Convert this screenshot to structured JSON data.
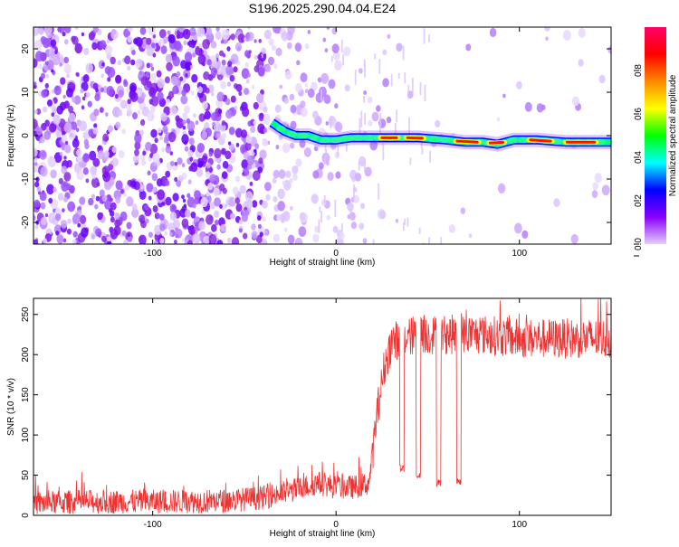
{
  "title": "S196.2025.290.04.04.E24",
  "chart_data": [
    {
      "type": "heatmap",
      "xlabel": "Height of straight line (km)",
      "ylabel": "Frequency (Hz)",
      "xlim": [
        -165,
        150
      ],
      "ylim": [
        -25,
        25
      ],
      "x_ticks": [
        -100,
        0,
        100
      ],
      "x_tick_labels": [
        "-100",
        "0",
        "100"
      ],
      "y_ticks": [
        -20,
        -10,
        0,
        10,
        20
      ],
      "y_tick_labels": [
        "-20",
        "-10",
        "0",
        "10",
        "20"
      ],
      "colorbar": {
        "label": "Normalized spectral amplitude",
        "range": [
          0,
          1
        ],
        "ticks": [
          0.0,
          0.2,
          0.4,
          0.6,
          0.8
        ],
        "tick_labels": [
          "0.0",
          "0.2",
          "0.4",
          "0.6",
          "0.8"
        ],
        "colors": [
          "#e6ccff",
          "#8800ff",
          "#0000ff",
          "#00ffff",
          "#00ff00",
          "#ffff00",
          "#ff8800",
          "#ff0000",
          "#ff0066"
        ]
      },
      "ridge": {
        "name": "frequency ridge",
        "x": [
          -35,
          -28,
          -22,
          -15,
          -8,
          0,
          8,
          18,
          30,
          45,
          60,
          70,
          80,
          88,
          97,
          110,
          125,
          150
        ],
        "y": [
          3,
          1,
          0,
          0,
          -1,
          -1,
          -0.5,
          -0.5,
          -0.5,
          -0.5,
          -1,
          -1.5,
          -1.5,
          -2,
          -1,
          -1,
          -1.5,
          -1.5
        ],
        "peak_segments": [
          [
            24,
            34
          ],
          [
            38,
            48
          ],
          [
            65,
            78
          ],
          [
            83,
            92
          ],
          [
            105,
            118
          ],
          [
            125,
            142
          ]
        ]
      }
    },
    {
      "type": "line",
      "xlabel": "Height of straight line (km)",
      "ylabel": "SNR (10 * v/v)",
      "xlim": [
        -165,
        150
      ],
      "ylim": [
        0,
        270
      ],
      "x_ticks": [
        -100,
        0,
        100
      ],
      "x_tick_labels": [
        "-100",
        "0",
        "100"
      ],
      "y_ticks": [
        0,
        50,
        100,
        150,
        200,
        250
      ],
      "y_tick_labels": [
        "0",
        "50",
        "100",
        "150",
        "200",
        "250"
      ],
      "series": [
        {
          "name": "SNR",
          "color": "#ee3333",
          "x": [
            -165,
            -140,
            -100,
            -60,
            -40,
            -25,
            -10,
            0,
            10,
            18,
            22,
            26,
            30,
            35,
            45,
            60,
            80,
            100,
            120,
            150
          ],
          "y": [
            15,
            17,
            17,
            18,
            22,
            30,
            40,
            35,
            35,
            40,
            120,
            180,
            215,
            220,
            225,
            225,
            225,
            220,
            220,
            220
          ],
          "dips": [
            [
              36,
              58
            ],
            [
              45,
              50
            ],
            [
              56,
              40
            ],
            [
              67,
              42
            ]
          ],
          "noise_below_x20": 15,
          "noise_above_x20": 25
        }
      ]
    }
  ]
}
